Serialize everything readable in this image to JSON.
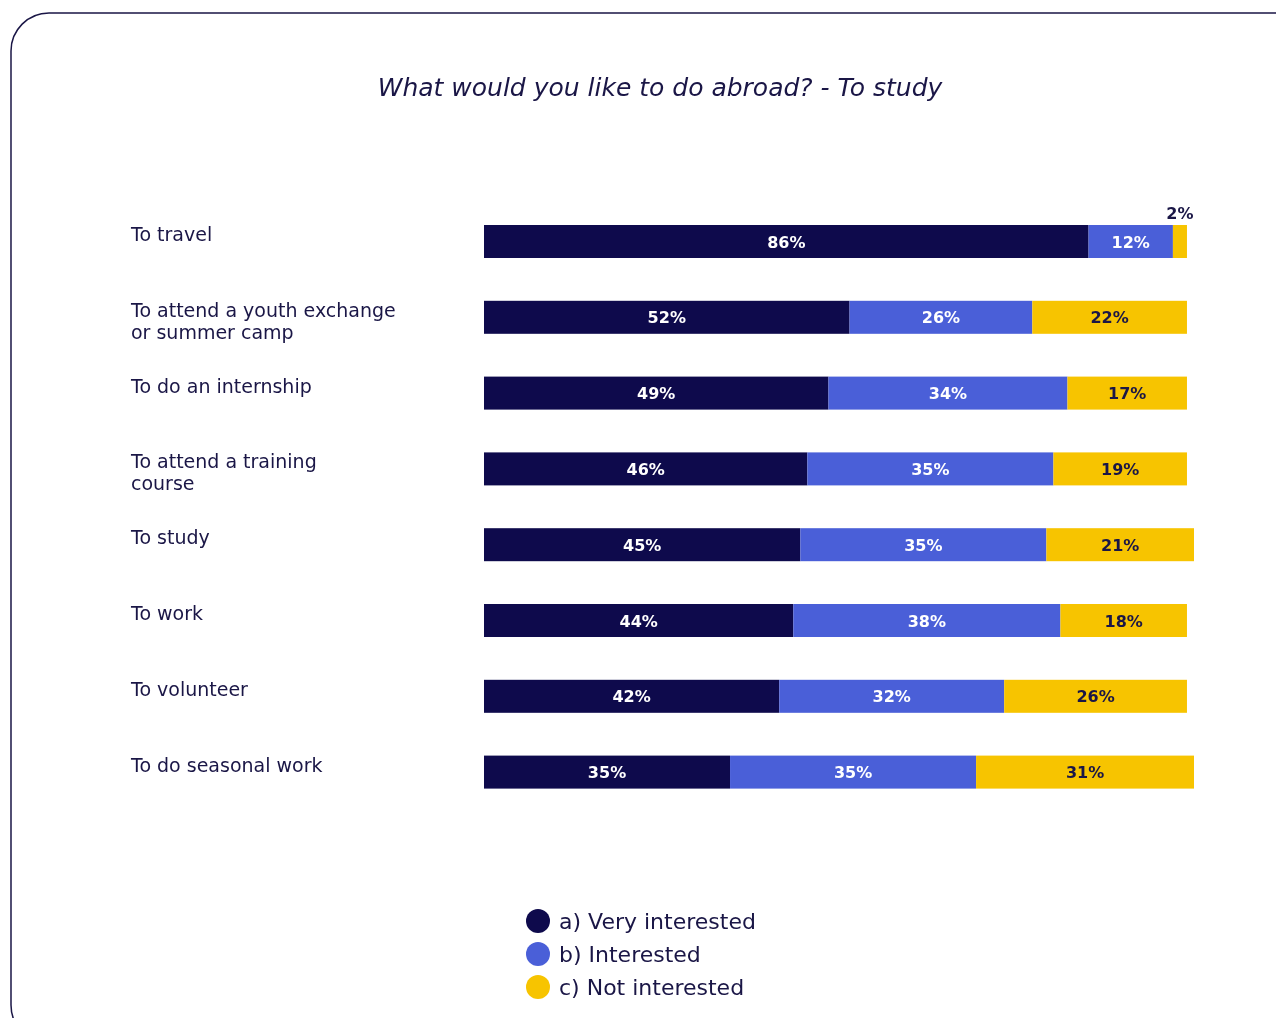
{
  "chart_data": {
    "type": "bar",
    "orientation": "horizontal",
    "stacked": true,
    "title": "What would you like to do abroad? - To study",
    "categories": [
      "To travel",
      "To attend a youth exchange or summer camp",
      "To do an internship",
      "To attend a training course",
      "To study",
      "To work",
      "To volunteer",
      "To do seasonal work"
    ],
    "series": [
      {
        "name": "a) Very interested",
        "color": "#0e0a4c",
        "values": [
          86,
          52,
          49,
          46,
          45,
          44,
          42,
          35
        ],
        "value_labels": [
          "86%",
          "52%",
          "49%",
          "46%",
          "45%",
          "44%",
          "42%",
          "35%"
        ]
      },
      {
        "name": "b) Interested",
        "color": "#4a5fd8",
        "values": [
          12,
          26,
          34,
          35,
          35,
          38,
          32,
          35
        ],
        "value_labels": [
          "12%",
          "26%",
          "34%",
          "35%",
          "35%",
          "38%",
          "32%",
          "35%"
        ]
      },
      {
        "name": "c) Not interested",
        "color": "#f7c400",
        "values": [
          2,
          22,
          17,
          19,
          21,
          18,
          26,
          31
        ],
        "value_labels": [
          "2%",
          "22%",
          "17%",
          "19%",
          "21%",
          "18%",
          "26%",
          "31%"
        ]
      }
    ],
    "tick_labels": "y",
    "legend": "bottom"
  }
}
